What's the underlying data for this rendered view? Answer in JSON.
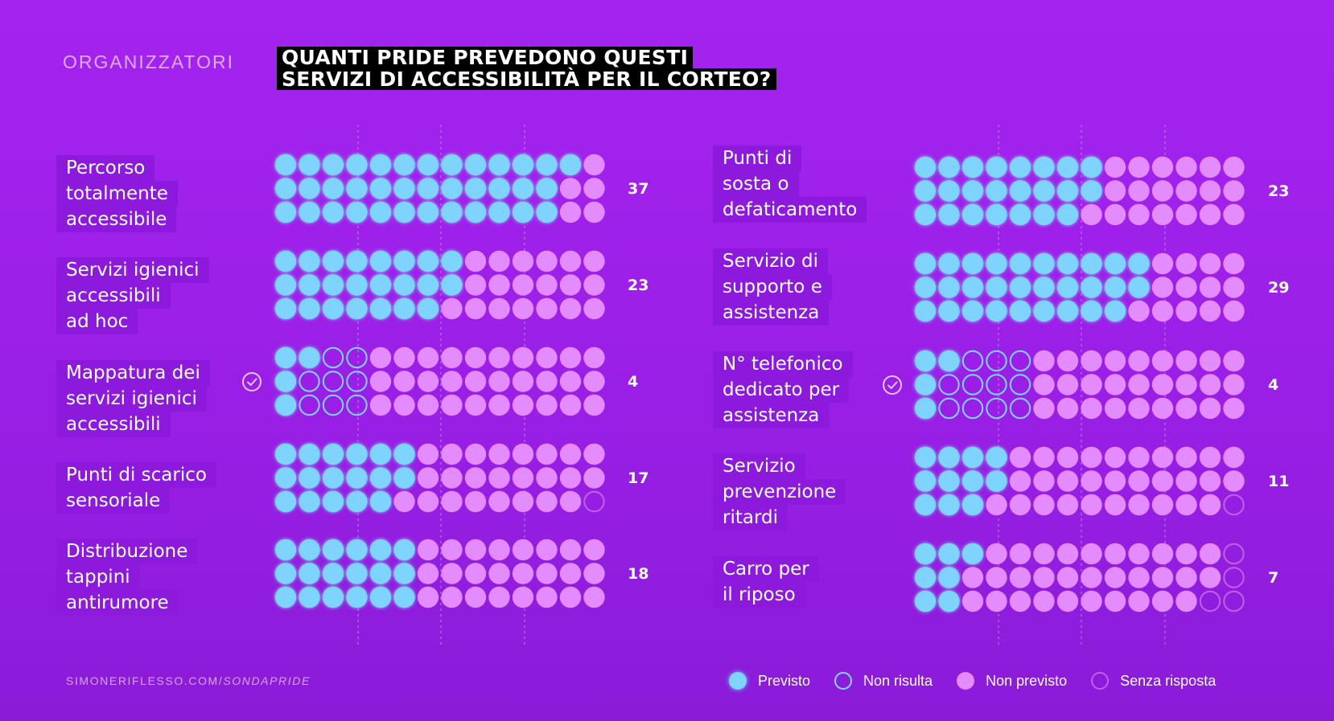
{
  "section_label": "ORGANIZZATORI",
  "title_lines": [
    "QUANTI PRIDE PREVEDONO QUESTI",
    "SERVIZI DI ACCESSIBILITÀ PER IL CORTEO?"
  ],
  "footer": {
    "site": "SIMONERIFLESSO.COM/",
    "path": "SONDAPRIDE"
  },
  "colors": {
    "previsto": "#7fd4ff",
    "non_risulta": "#7fd4ff",
    "non_previsto": "#e48cff",
    "senza_risposta": "#c060f0"
  },
  "legend": [
    {
      "key": "previsto",
      "label": "Previsto",
      "style": "filled",
      "color": "#7fd4ff"
    },
    {
      "key": "non_risulta",
      "label": "Non risulta",
      "style": "outline",
      "color": "#7fd4ff"
    },
    {
      "key": "non_previsto",
      "label": "Non previsto",
      "style": "filled",
      "color": "#e48cff"
    },
    {
      "key": "senza_risposta",
      "label": "Senza risposta",
      "style": "outline",
      "color": "#c060f0"
    }
  ],
  "chart_data": {
    "type": "waffle",
    "total_per_row": 42,
    "grid": "3 rows x 14 columns per item",
    "items": [
      {
        "label_lines": [
          "Percorso",
          "totalmente",
          "accessibile"
        ],
        "previsto": 37,
        "non_risulta": 0,
        "non_previsto": 5,
        "senza_risposta": 0,
        "value_label": "37",
        "check_icon": false
      },
      {
        "label_lines": [
          "Servizi igienici",
          "accessibili",
          "ad hoc"
        ],
        "previsto": 23,
        "non_risulta": 0,
        "non_previsto": 19,
        "senza_risposta": 0,
        "value_label": "23",
        "check_icon": false
      },
      {
        "label_lines": [
          "Mappatura dei",
          "servizi igienici",
          "accessibili"
        ],
        "previsto": 4,
        "non_risulta": 8,
        "non_previsto": 30,
        "senza_risposta": 0,
        "value_label": "4",
        "check_icon": true
      },
      {
        "label_lines": [
          "Punti di scarico",
          "sensoriale"
        ],
        "previsto": 17,
        "non_risulta": 0,
        "non_previsto": 24,
        "senza_risposta": 1,
        "value_label": "17",
        "check_icon": false
      },
      {
        "label_lines": [
          "Distribuzione",
          "tappini",
          "antirumore"
        ],
        "previsto": 18,
        "non_risulta": 0,
        "non_previsto": 24,
        "senza_risposta": 0,
        "value_label": "18",
        "check_icon": false
      },
      {
        "label_lines": [
          "Punti di",
          "sosta o",
          "defaticamento"
        ],
        "previsto": 23,
        "non_risulta": 0,
        "non_previsto": 19,
        "senza_risposta": 0,
        "value_label": "23",
        "check_icon": false
      },
      {
        "label_lines": [
          "Servizio di",
          "supporto e",
          "assistenza"
        ],
        "previsto": 29,
        "non_risulta": 0,
        "non_previsto": 13,
        "senza_risposta": 0,
        "value_label": "29",
        "check_icon": false
      },
      {
        "label_lines": [
          "N° telefonico",
          "dedicato per",
          "assistenza"
        ],
        "previsto": 4,
        "non_risulta": 11,
        "non_previsto": 27,
        "senza_risposta": 0,
        "value_label": "4",
        "check_icon": true
      },
      {
        "label_lines": [
          "Servizio",
          "prevenzione",
          "ritardi"
        ],
        "previsto": 11,
        "non_risulta": 0,
        "non_previsto": 30,
        "senza_risposta": 1,
        "value_label": "11",
        "check_icon": false
      },
      {
        "label_lines": [
          "Carro per",
          "il riposo"
        ],
        "previsto": 7,
        "non_risulta": 0,
        "non_previsto": 31,
        "senza_risposta": 4,
        "value_label": "7",
        "check_icon": false
      }
    ]
  }
}
